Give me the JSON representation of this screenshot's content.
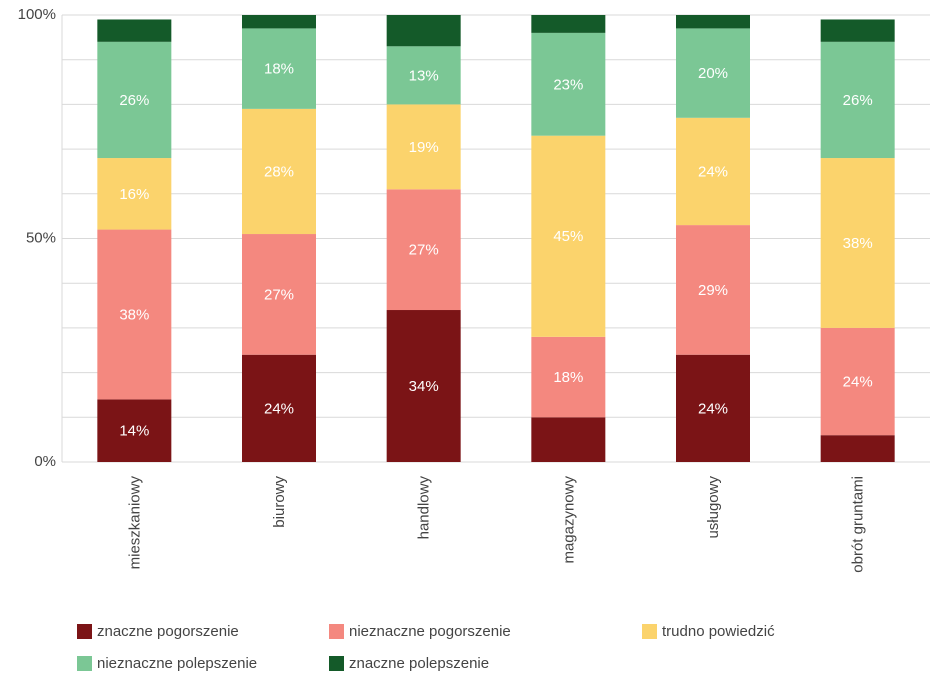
{
  "chart_data": {
    "type": "stacked_bar_100",
    "categories": [
      "mieszkaniowy",
      "biurowy",
      "handlowy",
      "magazynowy",
      "usługowy",
      "obrót gruntami"
    ],
    "series": [
      {
        "name": "znaczne pogorszenie",
        "color": "#7b1416",
        "values": [
          14,
          24,
          34,
          10,
          24,
          6
        ],
        "value_labels": [
          "14%",
          "24%",
          "34%",
          null,
          "24%",
          null
        ]
      },
      {
        "name": "nieznaczne pogorszenie",
        "color": "#f4887f",
        "values": [
          38,
          27,
          27,
          18,
          29,
          24
        ],
        "value_labels": [
          "38%",
          "27%",
          "27%",
          "18%",
          "29%",
          "24%"
        ]
      },
      {
        "name": "trudno powiedzić",
        "color": "#fbd36c",
        "values": [
          16,
          28,
          19,
          45,
          24,
          38
        ],
        "value_labels": [
          "16%",
          "28%",
          "19%",
          "45%",
          "24%",
          "38%"
        ]
      },
      {
        "name": "nieznaczne polepszenie",
        "color": "#7bc795",
        "values": [
          26,
          18,
          13,
          23,
          20,
          26
        ],
        "value_labels": [
          "26%",
          "18%",
          "13%",
          "23%",
          "20%",
          "26%"
        ]
      },
      {
        "name": "znaczne polepszenie",
        "color": "#145a29",
        "values": [
          5,
          3,
          7,
          4,
          3,
          5
        ],
        "value_labels": [
          null,
          null,
          null,
          null,
          null,
          null
        ]
      }
    ],
    "ylim": [
      0,
      100
    ],
    "yticks": [
      {
        "value": 0,
        "label": "0%"
      },
      {
        "value": 50,
        "label": "50%"
      },
      {
        "value": 100,
        "label": "100%"
      }
    ],
    "y_minor_ticks": [
      10,
      20,
      30,
      40,
      60,
      70,
      80,
      90
    ],
    "grid": true
  }
}
